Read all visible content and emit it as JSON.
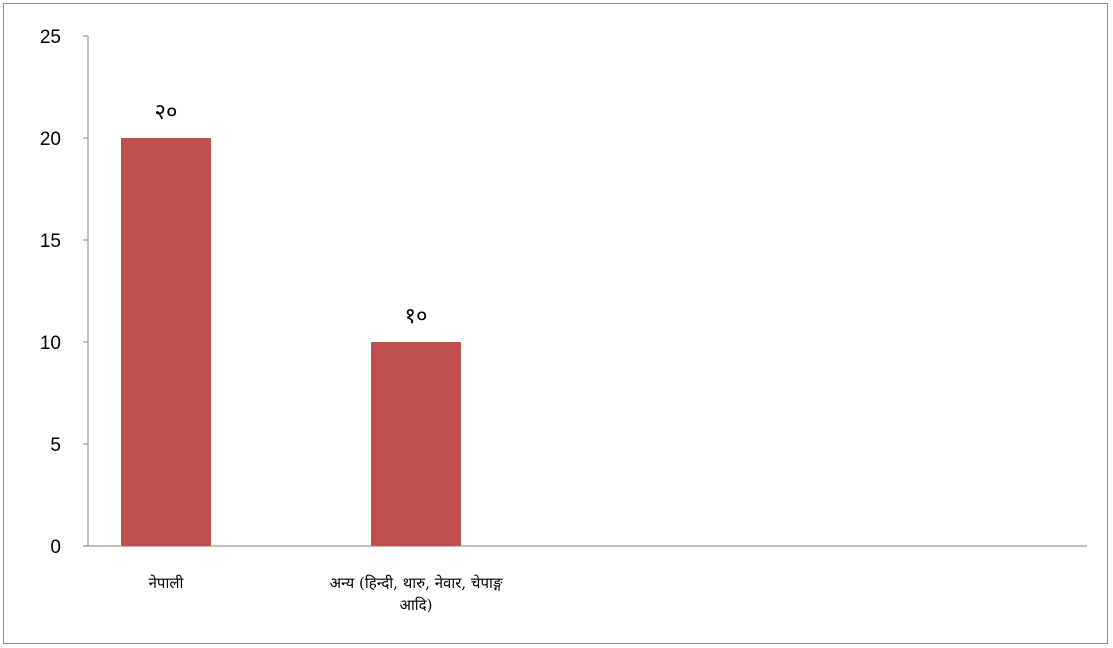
{
  "chart_data": {
    "type": "bar",
    "categories": [
      "नेपाली",
      "अन्य (हिन्दी, थारु, नेवार, चेपाङ्ग आदि)"
    ],
    "category_label_lines": [
      [
        "नेपाली"
      ],
      [
        "अन्य (हिन्दी, थारु, नेवार, चेपाङ्ग",
        "आदि)"
      ]
    ],
    "series": [
      {
        "values": [
          20,
          10
        ],
        "color": "#c0504d"
      }
    ],
    "data_labels": [
      "२०",
      "१०"
    ],
    "ylim": [
      0,
      25
    ],
    "yticks": [
      0,
      5,
      10,
      15,
      20,
      25
    ],
    "grid": false,
    "legend": "none",
    "title": "",
    "xlabel": "",
    "ylabel": "",
    "axis_color": "#808080"
  }
}
